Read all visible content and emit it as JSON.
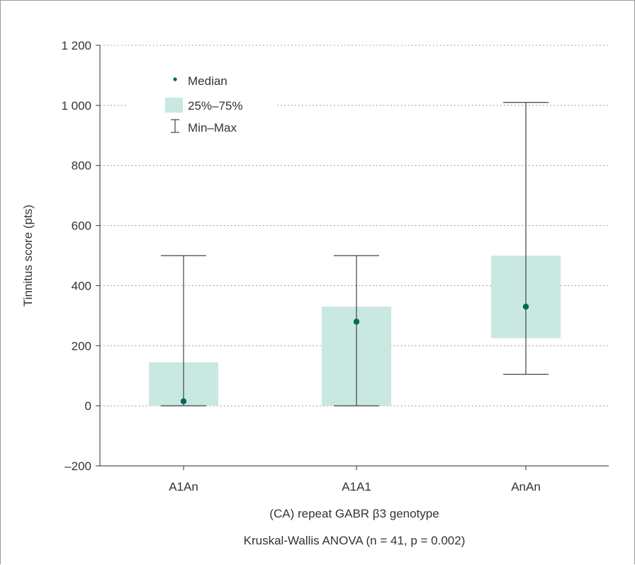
{
  "chart_data": {
    "type": "box",
    "categories": [
      "A1An",
      "A1A1",
      "AnAn"
    ],
    "series": [
      {
        "name": "Median",
        "values": [
          15,
          280,
          330
        ]
      },
      {
        "name": "25%–75%",
        "q1": [
          0,
          0,
          225
        ],
        "q3": [
          145,
          330,
          500
        ]
      },
      {
        "name": "Min–Max",
        "min": [
          0,
          0,
          105
        ],
        "max": [
          500,
          500,
          1010
        ]
      }
    ],
    "ylim": [
      -200,
      1200
    ],
    "yticks": [
      -200,
      0,
      200,
      400,
      600,
      800,
      1000,
      1200
    ],
    "ytick_labels": [
      "–200",
      "0",
      "200",
      "400",
      "600",
      "800",
      "1 000",
      "1 200"
    ],
    "ylabel": "Tinnitus score (pts)",
    "xlabel": "(CA) repeat GABR β3 genotype",
    "subtitle": "Kruskal-Wallis ANOVA (n = 41, p = 0.002)",
    "grid": "horizontal-dotted",
    "legend_placement": "top-left",
    "legend": {
      "median": "Median",
      "iqr": "25%–75%",
      "range": "Min–Max"
    },
    "colors": {
      "median": "#006a55",
      "iqr_fill": "#c8e8e1",
      "whisker": "#444444",
      "axis": "#555555",
      "grid": "#8a8a8a"
    }
  }
}
